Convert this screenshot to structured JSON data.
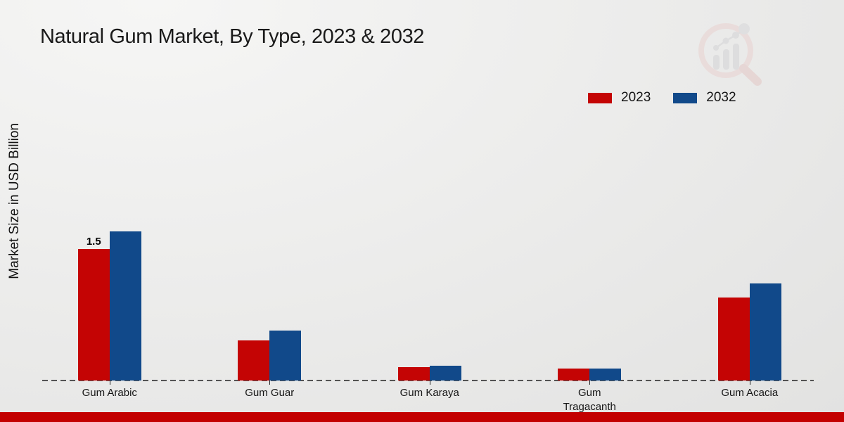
{
  "chart_data": {
    "type": "bar",
    "title": "Natural Gum Market, By Type, 2023 & 2032",
    "xlabel": "",
    "ylabel": "Market Size in USD Billion",
    "categories": [
      "Gum Arabic",
      "Gum Guar",
      "Gum Karaya",
      "Gum Tragacanth",
      "Gum Acacia"
    ],
    "series": [
      {
        "name": "2023",
        "color": "#c40404",
        "values": [
          1.5,
          0.46,
          0.15,
          0.14,
          0.95
        ]
      },
      {
        "name": "2032",
        "color": "#11498a",
        "values": [
          1.7,
          0.57,
          0.17,
          0.14,
          1.11
        ]
      }
    ],
    "annotations": [
      {
        "series": "2023",
        "category": "Gum Arabic",
        "text": "1.5"
      }
    ],
    "legend_position": "top-right",
    "grid": false,
    "ylim": [
      0,
      2
    ],
    "baseline_style": "dashed"
  },
  "icons": {
    "logo": "magnifier-bar-chart-logo"
  },
  "footer": {
    "bar_color": "#c30000"
  },
  "colors": {
    "background": "#ebebea",
    "axis": "#222222",
    "text": "#1a1a1a"
  }
}
